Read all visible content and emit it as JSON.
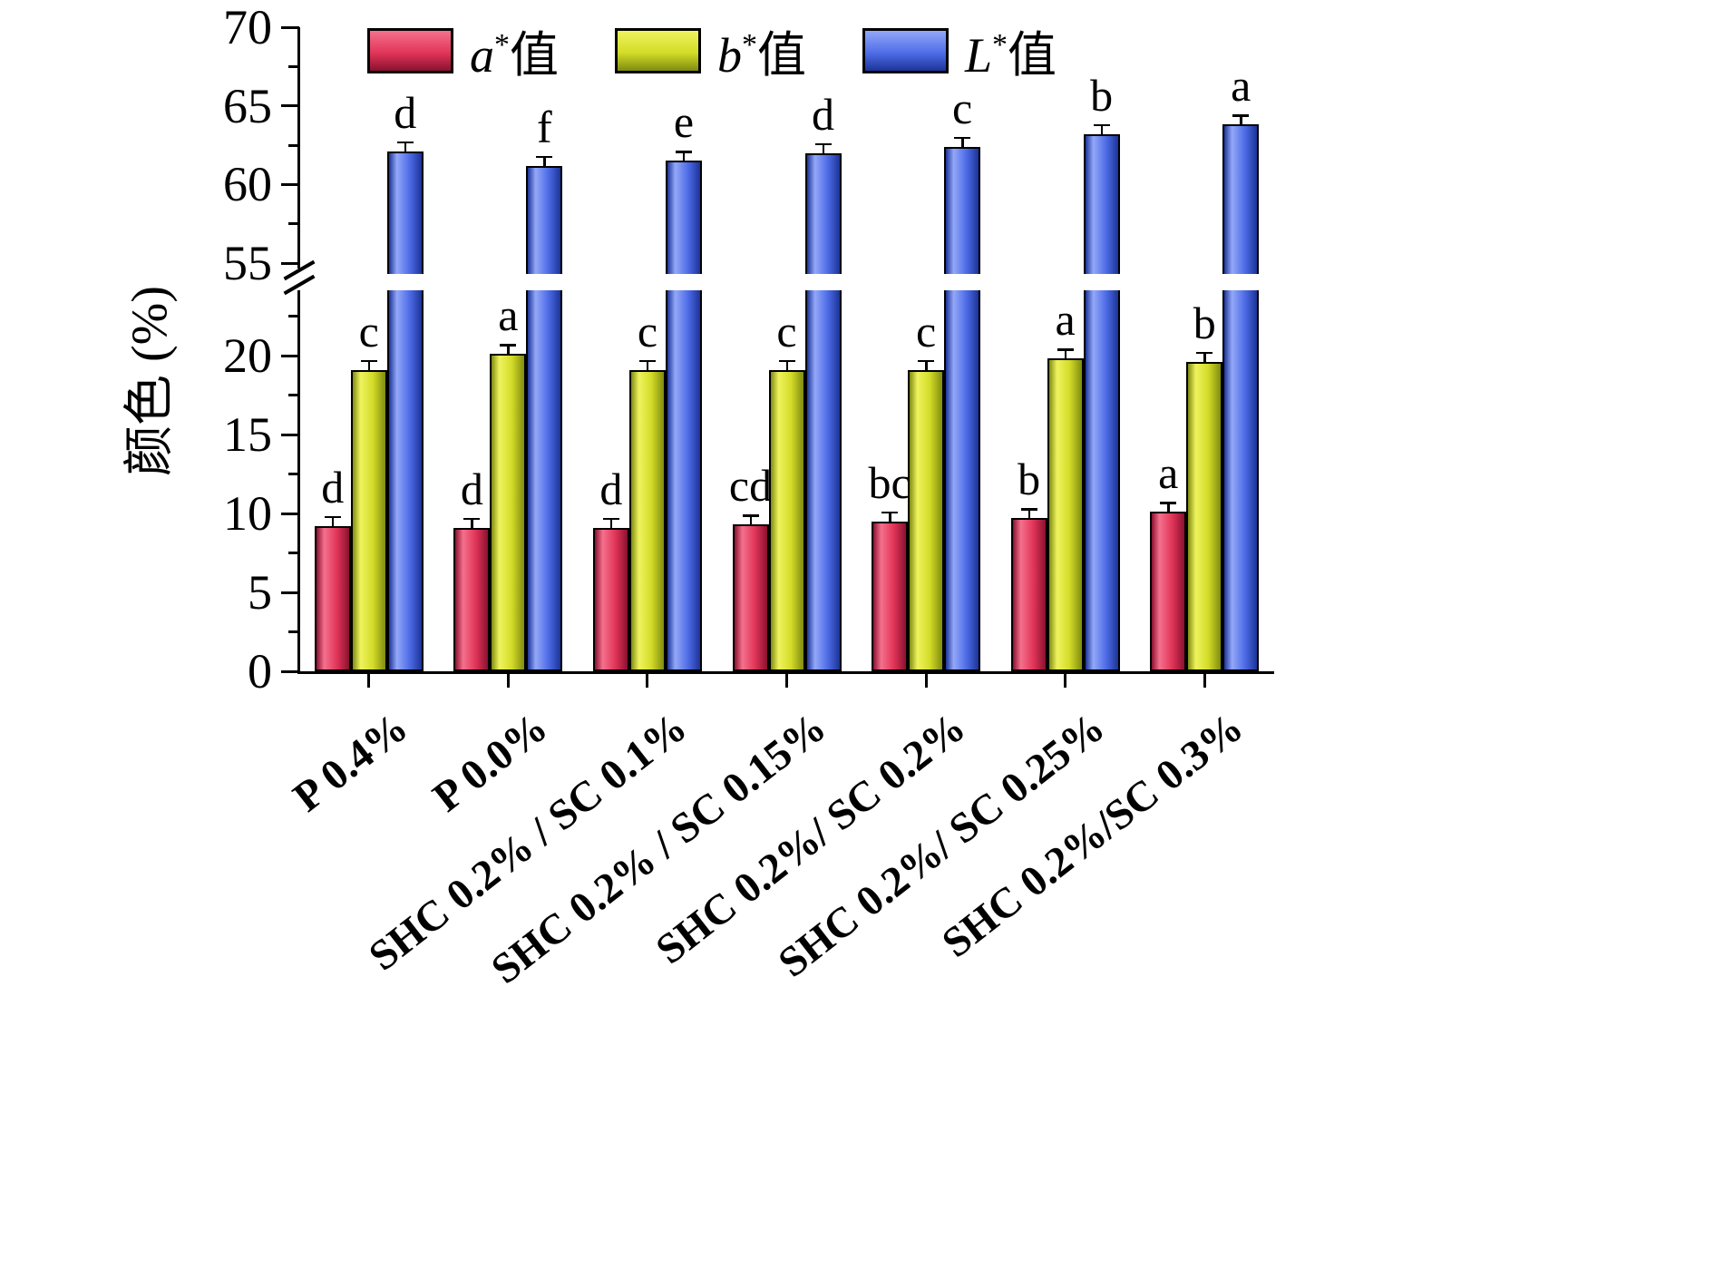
{
  "chart_data": {
    "type": "bar",
    "ylabel": "颜色 (%)",
    "ylim": [
      0,
      70
    ],
    "axis_break": {
      "lower_max": 24,
      "upper_min": 55
    },
    "lower_ticks": [
      0,
      5,
      10,
      15,
      20
    ],
    "upper_ticks": [
      55,
      60,
      65,
      70
    ],
    "lower_minor_ticks": [
      2.5,
      7.5,
      12.5,
      17.5,
      22.5
    ],
    "upper_minor_ticks": [
      57.5,
      62.5,
      67.5
    ],
    "legend_position": "top",
    "grid": false,
    "categories": [
      "P 0.4%",
      "P 0.0%",
      "SHC 0.2% / SC 0.1%",
      "SHC 0.2% / SC 0.15%",
      "SHC 0.2%/ SC 0.2%",
      "SHC 0.2%/ SC 0.25%",
      "SHC 0.2%/SC 0.3%"
    ],
    "series": [
      {
        "name": "a*值",
        "legend": {
          "letter": "a",
          "sup": "*",
          "word": "值"
        },
        "values": [
          9.2,
          9.1,
          9.1,
          9.3,
          9.5,
          9.7,
          10.1
        ],
        "sig_letters": [
          "d",
          "d",
          "d",
          "cd",
          "bc",
          "b",
          "a"
        ],
        "fill": {
          "base": "#e23558",
          "light": "#f4718d",
          "dark": "#8a1130"
        }
      },
      {
        "name": "b*值",
        "legend": {
          "letter": "b",
          "sup": "*",
          "word": "值"
        },
        "values": [
          19.1,
          20.1,
          19.1,
          19.1,
          19.1,
          19.8,
          19.6
        ],
        "sig_letters": [
          "c",
          "a",
          "c",
          "c",
          "c",
          "a",
          "b"
        ],
        "fill": {
          "base": "#d3dc28",
          "light": "#eff35e",
          "dark": "#808c10"
        }
      },
      {
        "name": "L*值",
        "legend": {
          "letter": "L",
          "sup": "*",
          "word": "值"
        },
        "values": [
          62.1,
          61.2,
          61.5,
          62.0,
          62.4,
          63.2,
          63.8
        ],
        "sig_letters": [
          "d",
          "f",
          "e",
          "d",
          "c",
          "b",
          "a"
        ],
        "fill": {
          "base": "#4f6de8",
          "light": "#93a8f8",
          "dark": "#1c3498"
        }
      }
    ]
  }
}
